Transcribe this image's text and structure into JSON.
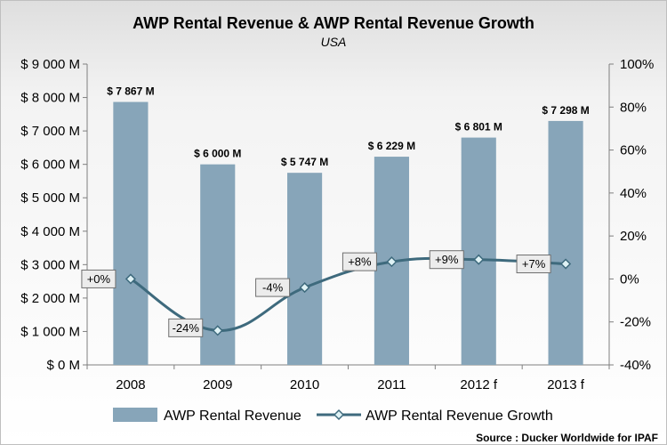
{
  "chart_data": {
    "type": "bar",
    "title": "AWP Rental Revenue & AWP Rental Revenue Growth",
    "subtitle": "USA",
    "categories": [
      "2008",
      "2009",
      "2010",
      "2011",
      "2012 f",
      "2013 f"
    ],
    "series": [
      {
        "name": "AWP Rental Revenue",
        "type": "bar",
        "axis": "left",
        "color": "#87a5b9",
        "values": [
          7867,
          6000,
          5747,
          6229,
          6801,
          7298
        ],
        "labels": [
          "$ 7 867 M",
          "$ 6 000 M",
          "$ 5 747 M",
          "$ 6 229 M",
          "$ 6 801 M",
          "$ 7 298 M"
        ]
      },
      {
        "name": "AWP Rental Revenue Growth",
        "type": "line",
        "axis": "right",
        "color": "#3e6a7d",
        "marker_fill": "#dff2f5",
        "values": [
          0,
          -24,
          -4,
          8,
          9,
          7
        ],
        "labels": [
          "+0%",
          "-24%",
          "-4%",
          "+8%",
          "+9%",
          "+7%"
        ]
      }
    ],
    "y_left": {
      "ylim": [
        0,
        9000
      ],
      "ticks": [
        0,
        1000,
        2000,
        3000,
        4000,
        5000,
        6000,
        7000,
        8000,
        9000
      ],
      "tick_labels": [
        "$ 0 M",
        "$ 1 000 M",
        "$ 2 000 M",
        "$ 3 000 M",
        "$ 4 000 M",
        "$ 5 000 M",
        "$ 6 000 M",
        "$ 7 000 M",
        "$ 8 000 M",
        "$ 9 000 M"
      ]
    },
    "y_right": {
      "ylim": [
        -40,
        100
      ],
      "ticks": [
        -40,
        -20,
        0,
        20,
        40,
        60,
        80,
        100
      ],
      "tick_labels": [
        "-40%",
        "-20%",
        "0%",
        "20%",
        "40%",
        "60%",
        "80%",
        "100%"
      ]
    },
    "xlabel": "",
    "ylabel": "",
    "grid": false,
    "legend_position": "bottom",
    "source": "Source : Ducker Worldwide for IPAF"
  }
}
